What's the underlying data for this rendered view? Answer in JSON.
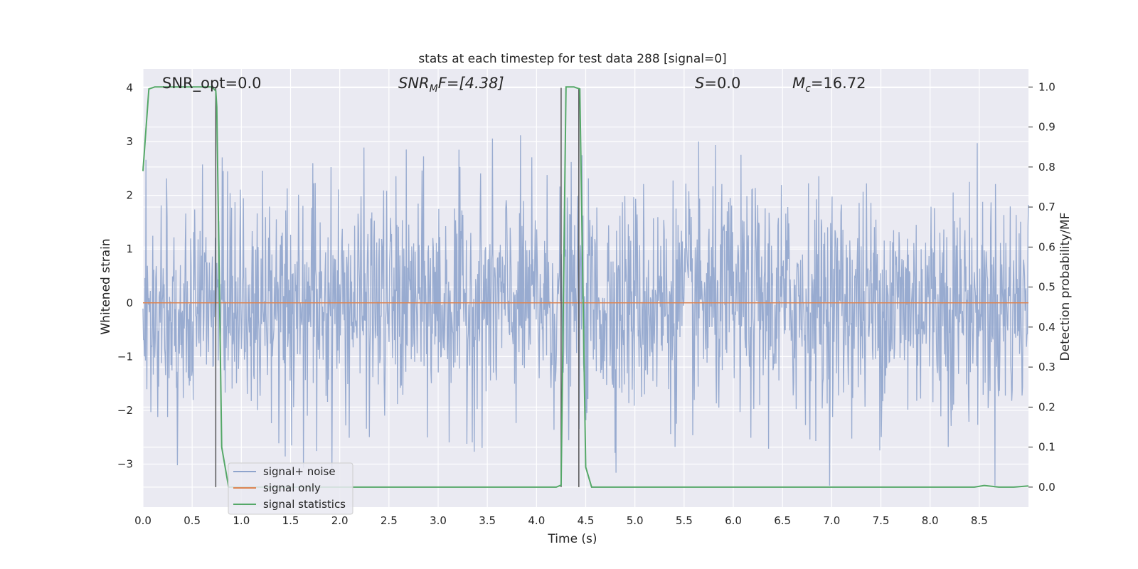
{
  "chart_data": {
    "type": "line",
    "title": "stats at each timestep for test data 288 [signal=0]",
    "xlabel": "Time (s)",
    "ylabel_left": "Whitened strain",
    "ylabel_right": "Detection probability/MF",
    "xlim": [
      0.0,
      9.0
    ],
    "ylim_left": [
      -3.8,
      4.35
    ],
    "ylim_right": [
      -0.05,
      1.045
    ],
    "xticks": [
      "0.0",
      "0.5",
      "1.0",
      "1.5",
      "2.0",
      "2.5",
      "3.0",
      "3.5",
      "4.0",
      "4.5",
      "5.0",
      "5.5",
      "6.0",
      "6.5",
      "7.0",
      "7.5",
      "8.0",
      "8.5"
    ],
    "yticks_left": [
      "4",
      "3",
      "2",
      "1",
      "0",
      "−1",
      "−2",
      "−3"
    ],
    "yticks_right": [
      "1.0",
      "0.9",
      "0.8",
      "0.7",
      "0.6",
      "0.5",
      "0.4",
      "0.3",
      "0.2",
      "0.1",
      "0.0"
    ],
    "grid": true,
    "legend_position": "lower-left",
    "annotations": {
      "snr_opt": "SNR_opt=0.0",
      "snr_mf_base": "SNR",
      "snr_mf_sub": "M",
      "snr_mf_rest": "F=[4.38]",
      "s_var": "S",
      "s_rest": "=0.0",
      "mc_base": "M",
      "mc_sub": "c",
      "mc_rest": "=16.72"
    },
    "series": [
      {
        "name": "signal+ noise",
        "color": "#8fa4cc",
        "kind": "noise",
        "n_samples": 1800,
        "amplitude_std": 1.05,
        "max": 4.0,
        "min": -3.4
      },
      {
        "name": "signal only",
        "color": "#dd8452",
        "kind": "flat",
        "x": [
          0.0,
          9.0
        ],
        "y": [
          0.0,
          0.0
        ]
      },
      {
        "name": "signal statistics",
        "color": "#55a868",
        "kind": "line",
        "x": [
          0.0,
          0.06,
          0.12,
          0.3,
          0.5,
          0.7,
          0.74,
          0.75,
          0.8,
          0.87,
          1.0,
          2.0,
          3.0,
          4.0,
          4.2,
          4.25,
          4.3,
          4.38,
          4.44,
          4.5,
          4.56,
          5.0,
          6.0,
          7.0,
          8.0,
          8.45,
          8.55,
          8.7,
          8.85,
          9.0
        ],
        "y": [
          0.79,
          0.995,
          1.0,
          1.0,
          1.0,
          1.0,
          0.99,
          0.95,
          0.1,
          0.0,
          0.0,
          0.0,
          0.0,
          0.0,
          0.0,
          0.005,
          1.0,
          1.0,
          0.995,
          0.05,
          0.0,
          0.0,
          0.0,
          0.0,
          0.0,
          0.0,
          0.004,
          0.0,
          0.0,
          0.003
        ]
      }
    ],
    "markers": [
      {
        "x": 0.74
      },
      {
        "x": 4.25
      },
      {
        "x": 4.43
      }
    ],
    "colors": {
      "plot_bg": "#eaeaf2",
      "grid": "#ffffff",
      "marker_line": "#555555"
    }
  }
}
